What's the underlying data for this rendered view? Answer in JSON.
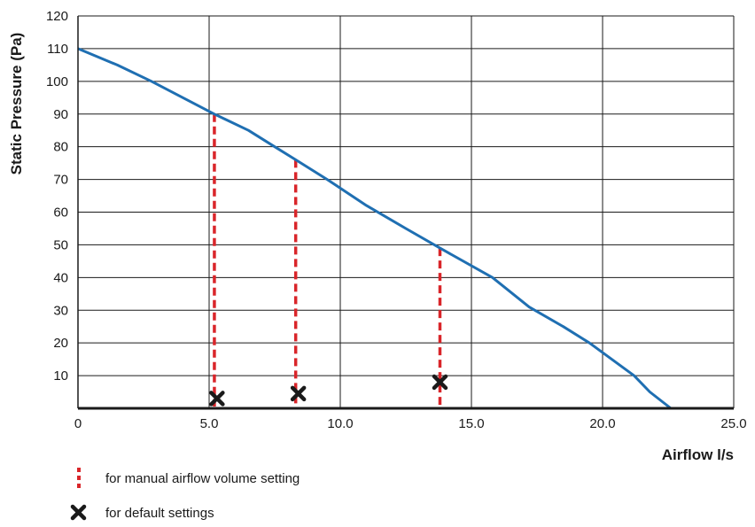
{
  "chart_data": {
    "type": "line",
    "title": "",
    "xlabel": "Airflow l/s",
    "ylabel": "Static Pressure (Pa)",
    "xlim": [
      0,
      25
    ],
    "ylim": [
      0,
      120
    ],
    "grid": true,
    "x_ticks": [
      "0",
      "5.0",
      "10.0",
      "15.0",
      "20.0",
      "25.0"
    ],
    "x_tick_values": [
      0,
      5,
      10,
      15,
      20,
      25
    ],
    "y_ticks": [
      "10",
      "20",
      "30",
      "40",
      "50",
      "60",
      "70",
      "80",
      "90",
      "100",
      "110",
      "120"
    ],
    "y_tick_values": [
      10,
      20,
      30,
      40,
      50,
      60,
      70,
      80,
      90,
      100,
      110,
      120
    ],
    "series": [
      {
        "color": "#1f6fb2",
        "x": [
          0,
          1.5,
          2.8,
          4.0,
          5.2,
          6.5,
          7.5,
          8.3,
          9.5,
          11.0,
          12.5,
          13.8,
          15.8,
          17.2,
          18.5,
          19.5,
          21.2,
          21.8,
          22.6
        ],
        "y": [
          110,
          105,
          100,
          95,
          90,
          85,
          80,
          76,
          70,
          62,
          55,
          49,
          40,
          31,
          25,
          20,
          10,
          5,
          0
        ]
      }
    ],
    "manual_settings": {
      "color": "#d9252a",
      "points": [
        {
          "x": 5.2,
          "y": 90
        },
        {
          "x": 8.3,
          "y": 76
        },
        {
          "x": 13.8,
          "y": 49
        }
      ]
    },
    "default_settings": {
      "color": "#1a1a1a",
      "points": [
        {
          "x": 5.3,
          "y": 3
        },
        {
          "x": 8.4,
          "y": 4.5
        },
        {
          "x": 13.8,
          "y": 8
        }
      ]
    },
    "legend": {
      "placement": "bottom-left",
      "items": [
        {
          "symbol": "red-dashed-line-icon",
          "label": "for manual airflow volume setting"
        },
        {
          "symbol": "x-mark-icon",
          "label": "for default settings"
        }
      ]
    }
  }
}
